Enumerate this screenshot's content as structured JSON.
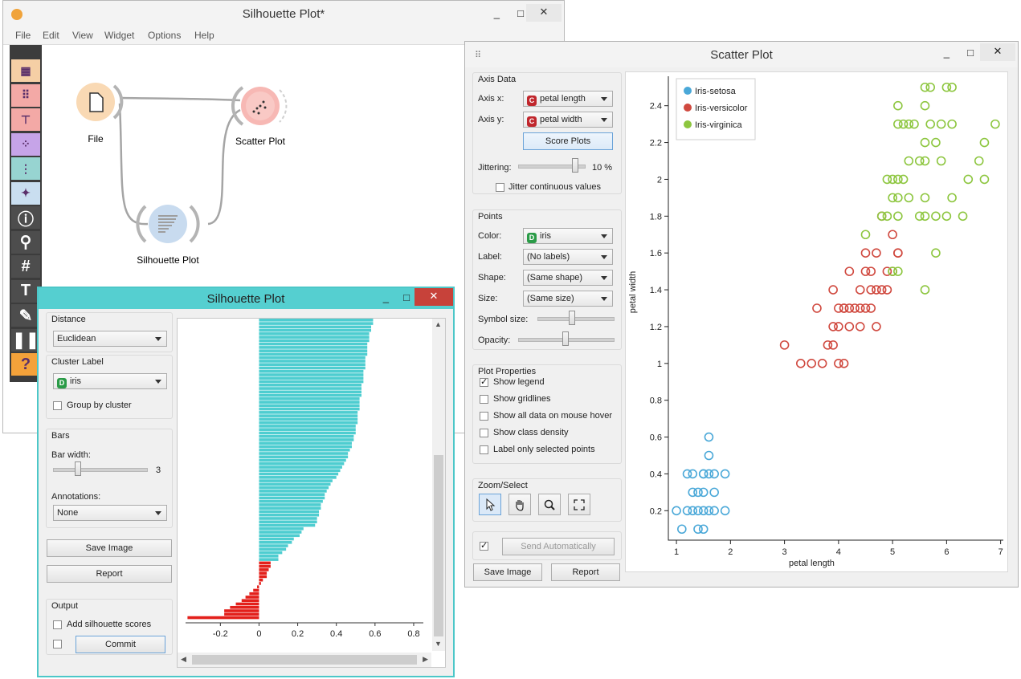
{
  "canvas_window": {
    "title": "Silhouette Plot*",
    "menu": [
      "File",
      "Edit",
      "View",
      "Widget",
      "Options",
      "Help"
    ],
    "nodes": [
      {
        "label": "File",
        "color": "#f9d9b4",
        "icon": "document-icon"
      },
      {
        "label": "Scatter Plot",
        "color": "#f7b8b4",
        "icon": "scatter-icon"
      },
      {
        "label": "Silhouette Plot",
        "color": "#c8dbef",
        "icon": "silhouette-icon"
      }
    ],
    "toolbox_icons": [
      "table-icon",
      "scatter-icon",
      "tree-icon",
      "points-icon",
      "grid-icon",
      "star-icon",
      "info-icon",
      "zoom-icon",
      "hash-icon",
      "text-icon",
      "pen-icon",
      "pause-icon",
      "help-icon"
    ],
    "toolbox_colors": [
      "#f5cfa5",
      "#f3a9a6",
      "#f3a9a6",
      "#c6a4e8",
      "#97d4d1",
      "#c9def0",
      "#4d4d4d",
      "#4d4d4d",
      "#4d4d4d",
      "#4d4d4d",
      "#4d4d4d",
      "#4d4d4d",
      "#f4a23a"
    ]
  },
  "silhouette_window": {
    "title": "Silhouette Plot",
    "distance": {
      "label": "Distance",
      "value": "Euclidean"
    },
    "cluster_label": {
      "label": "Cluster Label",
      "value": "iris",
      "chip": "D",
      "group_by": "Group by cluster"
    },
    "bars": {
      "label": "Bars",
      "bar_width_label": "Bar width:",
      "bar_width_value": "3",
      "bar_width_level": 0.25,
      "annotations_label": "Annotations:",
      "annotations_value": "None"
    },
    "save_image": "Save Image",
    "report": "Report",
    "output": {
      "label": "Output",
      "add_scores": "Add silhouette scores",
      "commit": "Commit"
    },
    "plot": {
      "xticks": [
        "-0.2",
        "0",
        "0.2",
        "0.4",
        "0.6",
        "0.8"
      ]
    },
    "chart_data": {
      "type": "bar",
      "orientation": "horizontal",
      "xlim": [
        -0.38,
        0.85
      ],
      "xticks": [
        -0.2,
        0,
        0.2,
        0.4,
        0.6,
        0.8
      ],
      "series": [
        {
          "color": "#4ecdd0",
          "values": [
            0.59,
            0.59,
            0.58,
            0.58,
            0.57,
            0.57,
            0.57,
            0.56,
            0.56,
            0.56,
            0.56,
            0.55,
            0.55,
            0.55,
            0.55,
            0.54,
            0.54,
            0.54,
            0.54,
            0.53,
            0.53,
            0.53,
            0.53,
            0.52,
            0.52,
            0.52,
            0.52,
            0.51,
            0.51,
            0.51,
            0.51,
            0.5,
            0.5,
            0.5,
            0.49,
            0.49,
            0.48,
            0.48,
            0.47,
            0.46,
            0.46,
            0.45,
            0.44,
            0.43,
            0.42,
            0.41,
            0.4,
            0.38,
            0.37,
            0.36,
            0.35,
            0.34,
            0.34,
            0.33,
            0.32,
            0.32,
            0.31,
            0.31,
            0.3,
            0.3,
            0.29,
            0.23,
            0.22,
            0.21,
            0.18,
            0.17,
            0.15,
            0.14,
            0.12,
            0.1,
            0.1
          ]
        },
        {
          "color": "#e3201b",
          "values": [
            0.06,
            0.06,
            0.05,
            0.04,
            0.04,
            0.02,
            0.01,
            -0.01,
            -0.03,
            -0.05,
            -0.07,
            -0.09,
            -0.12,
            -0.15,
            -0.18,
            -0.18,
            -0.37
          ]
        }
      ]
    }
  },
  "scatter_window": {
    "title": "Scatter Plot",
    "axis_data": {
      "label": "Axis Data",
      "axis_x_label": "Axis x:",
      "axis_x_value": "petal length",
      "axis_y_label": "Axis y:",
      "axis_y_value": "petal width",
      "chip": "C",
      "score_plots": "Score Plots",
      "jittering_label": "Jittering:",
      "jittering_value": "10 %",
      "jittering_level": 0.9,
      "jitter_continuous": "Jitter continuous values"
    },
    "points": {
      "label": "Points",
      "color_label": "Color:",
      "color_value": "iris",
      "color_chip": "D",
      "label_label": "Label:",
      "label_value": "(No labels)",
      "shape_label": "Shape:",
      "shape_value": "(Same shape)",
      "size_label": "Size:",
      "size_value": "(Same size)",
      "symbol_size_label": "Symbol size:",
      "symbol_size_level": 0.45,
      "opacity_label": "Opacity:",
      "opacity_level": 0.5
    },
    "plot_properties": {
      "label": "Plot Properties",
      "options": [
        {
          "text": "Show legend",
          "checked": true
        },
        {
          "text": "Show gridlines",
          "checked": false
        },
        {
          "text": "Show all data on mouse hover",
          "checked": false
        },
        {
          "text": "Show class density",
          "checked": false
        },
        {
          "text": "Label only selected points",
          "checked": false
        }
      ]
    },
    "zoom_select": {
      "label": "Zoom/Select",
      "tools": [
        "pointer-icon",
        "hand-icon",
        "magnifier-icon",
        "fit-icon"
      ]
    },
    "send_automatically": "Send Automatically",
    "send_checked": true,
    "save_image": "Save Image",
    "report": "Report",
    "chart_data": {
      "type": "scatter",
      "xlabel": "petal length",
      "ylabel": "petal width",
      "xlim": [
        0.85,
        7.05
      ],
      "ylim": [
        0.04,
        2.56
      ],
      "xticks": [
        1,
        2,
        3,
        4,
        5,
        6,
        7
      ],
      "yticks": [
        "0.2",
        "0.4",
        "0.6",
        "0.8",
        "1",
        "1.2",
        "1.4",
        "1.6",
        "1.8",
        "2",
        "2.2",
        "2.4"
      ],
      "legend": "top-left",
      "series": [
        {
          "name": "Iris-setosa",
          "color": "#4aa8d8",
          "points": [
            [
              1.0,
              0.2
            ],
            [
              1.1,
              0.1
            ],
            [
              1.2,
              0.2
            ],
            [
              1.3,
              0.2
            ],
            [
              1.4,
              0.2
            ],
            [
              1.5,
              0.2
            ],
            [
              1.6,
              0.2
            ],
            [
              1.7,
              0.2
            ],
            [
              1.9,
              0.2
            ],
            [
              1.3,
              0.3
            ],
            [
              1.4,
              0.3
            ],
            [
              1.5,
              0.3
            ],
            [
              1.7,
              0.3
            ],
            [
              1.3,
              0.4
            ],
            [
              1.5,
              0.4
            ],
            [
              1.6,
              0.4
            ],
            [
              1.7,
              0.4
            ],
            [
              1.9,
              0.4
            ],
            [
              1.6,
              0.5
            ],
            [
              1.6,
              0.6
            ],
            [
              1.5,
              0.1
            ],
            [
              1.4,
              0.1
            ],
            [
              1.2,
              0.4
            ],
            [
              1.5,
              0.4
            ]
          ]
        },
        {
          "name": "Iris-versicolor",
          "color": "#d0493f",
          "points": [
            [
              3.0,
              1.1
            ],
            [
              3.3,
              1.0
            ],
            [
              3.5,
              1.0
            ],
            [
              3.7,
              1.0
            ],
            [
              4.0,
              1.0
            ],
            [
              4.1,
              1.0
            ],
            [
              3.8,
              1.1
            ],
            [
              3.9,
              1.1
            ],
            [
              3.6,
              1.3
            ],
            [
              3.9,
              1.2
            ],
            [
              4.0,
              1.2
            ],
            [
              4.2,
              1.2
            ],
            [
              4.4,
              1.2
            ],
            [
              4.7,
              1.2
            ],
            [
              3.9,
              1.4
            ],
            [
              4.0,
              1.3
            ],
            [
              4.1,
              1.3
            ],
            [
              4.2,
              1.3
            ],
            [
              4.3,
              1.3
            ],
            [
              4.4,
              1.3
            ],
            [
              4.5,
              1.3
            ],
            [
              4.6,
              1.3
            ],
            [
              4.7,
              1.4
            ],
            [
              4.4,
              1.4
            ],
            [
              4.6,
              1.4
            ],
            [
              4.8,
              1.4
            ],
            [
              4.9,
              1.4
            ],
            [
              4.5,
              1.5
            ],
            [
              4.6,
              1.5
            ],
            [
              4.9,
              1.5
            ],
            [
              5.0,
              1.5
            ],
            [
              4.2,
              1.5
            ],
            [
              4.1,
              1.3
            ],
            [
              4.5,
              1.6
            ],
            [
              4.7,
              1.6
            ],
            [
              5.1,
              1.6
            ],
            [
              5.0,
              1.7
            ],
            [
              4.8,
              1.8
            ],
            [
              5.1,
              1.6
            ]
          ]
        },
        {
          "name": "Iris-virginica",
          "color": "#8dc63f",
          "points": [
            [
              4.5,
              1.7
            ],
            [
              5.0,
              1.5
            ],
            [
              5.1,
              1.5
            ],
            [
              5.6,
              1.4
            ],
            [
              5.8,
              1.6
            ],
            [
              4.8,
              1.8
            ],
            [
              4.9,
              1.8
            ],
            [
              5.1,
              1.8
            ],
            [
              5.5,
              1.8
            ],
            [
              5.6,
              1.8
            ],
            [
              5.8,
              1.8
            ],
            [
              6.0,
              1.8
            ],
            [
              6.3,
              1.8
            ],
            [
              5.0,
              1.9
            ],
            [
              5.1,
              1.9
            ],
            [
              5.3,
              1.9
            ],
            [
              5.6,
              1.9
            ],
            [
              6.1,
              1.9
            ],
            [
              4.9,
              2.0
            ],
            [
              5.0,
              2.0
            ],
            [
              5.1,
              2.0
            ],
            [
              5.2,
              2.0
            ],
            [
              6.4,
              2.0
            ],
            [
              6.7,
              2.0
            ],
            [
              5.3,
              2.1
            ],
            [
              5.5,
              2.1
            ],
            [
              5.6,
              2.1
            ],
            [
              5.9,
              2.1
            ],
            [
              6.6,
              2.1
            ],
            [
              5.6,
              2.2
            ],
            [
              5.8,
              2.2
            ],
            [
              6.7,
              2.2
            ],
            [
              5.1,
              2.3
            ],
            [
              5.2,
              2.3
            ],
            [
              5.3,
              2.3
            ],
            [
              5.4,
              2.3
            ],
            [
              5.7,
              2.3
            ],
            [
              5.9,
              2.3
            ],
            [
              6.1,
              2.3
            ],
            [
              6.9,
              2.3
            ],
            [
              5.1,
              2.4
            ],
            [
              5.6,
              2.4
            ],
            [
              5.6,
              2.5
            ],
            [
              5.7,
              2.5
            ],
            [
              6.0,
              2.5
            ],
            [
              6.1,
              2.5
            ]
          ]
        }
      ]
    }
  }
}
